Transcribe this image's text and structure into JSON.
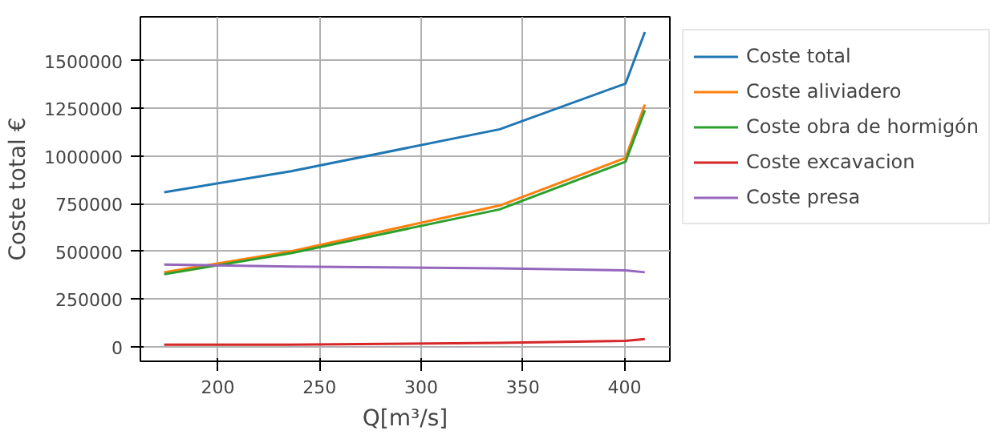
{
  "chart_data": {
    "type": "line",
    "xlabel": "Q[m³/s]",
    "ylabel": "Coste total €",
    "x": [
      173.6,
      236,
      338.6,
      400.5,
      410
    ],
    "series": [
      {
        "name": "Coste total",
        "color": "#1f77b4",
        "values": [
          810000,
          920000,
          1140000,
          1380000,
          1650000
        ]
      },
      {
        "name": "Coste aliviadero",
        "color": "#ff7f0e",
        "values": [
          390000,
          500000,
          740000,
          990000,
          1270000
        ]
      },
      {
        "name": "Coste obra de hormigón",
        "color": "#2ca02c",
        "values": [
          380000,
          490000,
          720000,
          970000,
          1240000
        ]
      },
      {
        "name": "Coste excavacion",
        "color": "#d62728",
        "values": [
          10000,
          10000,
          20000,
          30000,
          40000
        ]
      },
      {
        "name": "Coste presa",
        "color": "#9467bd",
        "values": [
          430000,
          420000,
          410000,
          400000,
          390000
        ]
      }
    ],
    "xlim": [
      161.9,
      422.3
    ],
    "ylim": [
      -77000,
      1730000
    ],
    "xticks": [
      200,
      250,
      300,
      350,
      400
    ],
    "yticks": [
      0,
      250000,
      500000,
      750000,
      1000000,
      1250000,
      1500000
    ],
    "grid": true,
    "legend": "top right",
    "marker": "none",
    "line_style": "solid"
  }
}
